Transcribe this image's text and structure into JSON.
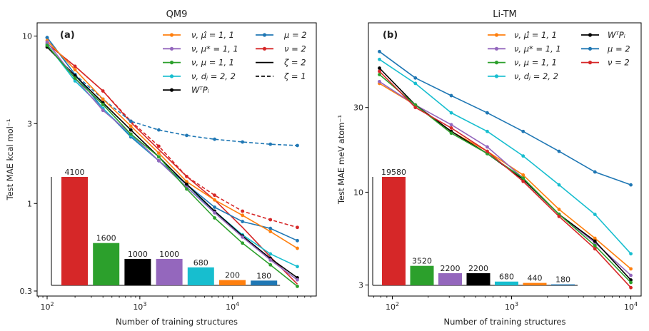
{
  "chart_data": [
    {
      "type": "line",
      "title": "QM9",
      "panel_label": "(a)",
      "xlabel": "Number of training structures",
      "ylabel": "Test MAE kcal mol⁻¹",
      "xscale": "log",
      "yscale": "log",
      "xlim": [
        78,
        80000
      ],
      "ylim": [
        0.28,
        12
      ],
      "xticks": [
        {
          "value": 100,
          "base": "10",
          "exp": "2"
        },
        {
          "value": 1000,
          "base": "10",
          "exp": "3"
        },
        {
          "value": 10000,
          "base": "10",
          "exp": "4"
        }
      ],
      "yticks": [
        {
          "value": 0.3,
          "label": "0.3"
        },
        {
          "value": 1,
          "label": "1"
        },
        {
          "value": 3,
          "label": "3"
        },
        {
          "value": 10,
          "label": "10"
        }
      ],
      "legend_columns": [
        [
          {
            "label": "ν, µ̂ = 1, 1",
            "color": "#ff7f0e",
            "dash": "solid",
            "marker": true
          },
          {
            "label": "ν, µ* = 1, 1",
            "color": "#9467bd",
            "dash": "solid",
            "marker": true
          },
          {
            "label": "ν, µ = 1, 1",
            "color": "#2ca02c",
            "dash": "solid",
            "marker": true
          },
          {
            "label": "ν, dⱼ = 2, 2",
            "color": "#17becf",
            "dash": "solid",
            "marker": true
          },
          {
            "label": "WᵀPᵢ",
            "color": "#000000",
            "dash": "solid",
            "marker": true
          }
        ],
        [
          {
            "label": "µ = 2",
            "color": "#1f77b4",
            "dash": "solid",
            "marker": true
          },
          {
            "label": "ν = 2",
            "color": "#d62728",
            "dash": "solid",
            "marker": true
          },
          {
            "label": "ζ = 2",
            "color": "#000000",
            "dash": "solid",
            "marker": false
          },
          {
            "label": "ζ = 1",
            "color": "#000000",
            "dash": "dashed",
            "marker": false
          }
        ]
      ],
      "x": [
        100,
        200,
        400,
        800,
        1600,
        3200,
        6400,
        12800,
        25600,
        50000
      ],
      "series": [
        {
          "name": "ν=2 ζ=2",
          "color": "#d62728",
          "dash": "solid",
          "marker": false,
          "values": [
            9.0,
            6.6,
            4.7,
            3.05,
            2.1,
            1.45,
            1.05,
            0.72,
            0.48,
            0.33
          ]
        },
        {
          "name": "ν=2 ζ=1",
          "color": "#d62728",
          "dash": "dashed",
          "marker": true,
          "values": [
            9.0,
            6.6,
            4.7,
            3.1,
            2.2,
            1.45,
            1.12,
            0.9,
            0.8,
            0.72
          ]
        },
        {
          "name": "µ=2 ζ=1",
          "color": "#1f77b4",
          "dash": "dashed",
          "marker": true,
          "values": [
            9.8,
            5.9,
            4.2,
            3.1,
            2.75,
            2.55,
            2.42,
            2.33,
            2.26,
            2.22
          ]
        },
        {
          "name": "µ=2 ζ=2",
          "color": "#1f77b4",
          "dash": "solid",
          "marker": true,
          "values": [
            9.8,
            5.9,
            3.7,
            2.5,
            1.8,
            1.3,
            0.95,
            0.78,
            0.71,
            0.6
          ]
        },
        {
          "name": "ν,µ̂=1,1",
          "color": "#ff7f0e",
          "dash": "solid",
          "marker": true,
          "values": [
            9.4,
            6.3,
            4.2,
            2.9,
            2.0,
            1.35,
            1.05,
            0.85,
            0.68,
            0.54
          ]
        },
        {
          "name": "ν,dⱼ=2,2",
          "color": "#17becf",
          "dash": "solid",
          "marker": true,
          "values": [
            8.9,
            5.4,
            3.7,
            2.55,
            1.8,
            1.25,
            0.9,
            0.65,
            0.5,
            0.42
          ]
        },
        {
          "name": "WᵀPᵢ",
          "color": "#000000",
          "dash": "solid",
          "marker": true,
          "values": [
            8.6,
            5.8,
            4.0,
            2.75,
            1.9,
            1.3,
            0.9,
            0.64,
            0.47,
            0.36
          ]
        },
        {
          "name": "ν,µ*=1,1",
          "color": "#9467bd",
          "dash": "solid",
          "marker": true,
          "values": [
            9.2,
            5.6,
            3.6,
            2.6,
            1.8,
            1.25,
            0.88,
            0.63,
            0.46,
            0.35
          ]
        },
        {
          "name": "ν,µ=1,1",
          "color": "#2ca02c",
          "dash": "solid",
          "marker": true,
          "values": [
            8.8,
            5.6,
            3.9,
            2.6,
            1.9,
            1.22,
            0.82,
            0.58,
            0.43,
            0.32
          ]
        }
      ],
      "inset_bars": {
        "max_value": 4100,
        "bars": [
          {
            "value": 4100,
            "label": "4100",
            "color": "#d62728"
          },
          {
            "value": 1600,
            "label": "1600",
            "color": "#2ca02c"
          },
          {
            "value": 1000,
            "label": "1000",
            "color": "#000000"
          },
          {
            "value": 1000,
            "label": "1000",
            "color": "#9467bd"
          },
          {
            "value": 680,
            "label": "680",
            "color": "#17becf"
          },
          {
            "value": 200,
            "label": "200",
            "color": "#ff7f0e"
          },
          {
            "value": 180,
            "label": "180",
            "color": "#1f77b4"
          }
        ]
      }
    },
    {
      "type": "line",
      "title": "Li-TM",
      "panel_label": "(b)",
      "xlabel": "Number of training structures",
      "ylabel": "Test MAE meV atom⁻¹",
      "xscale": "log",
      "yscale": "log",
      "xlim": [
        63,
        12200
      ],
      "ylim": [
        2.6,
        90
      ],
      "xticks": [
        {
          "value": 100,
          "base": "10",
          "exp": "2"
        },
        {
          "value": 1000,
          "base": "10",
          "exp": "3"
        },
        {
          "value": 10000,
          "base": "10",
          "exp": "4"
        }
      ],
      "yticks": [
        {
          "value": 3,
          "label": "3"
        },
        {
          "value": 10,
          "label": "10"
        },
        {
          "value": 30,
          "label": "30"
        }
      ],
      "legend_columns": [
        [
          {
            "label": "ν, µ̂ = 1, 1",
            "color": "#ff7f0e",
            "dash": "solid",
            "marker": true
          },
          {
            "label": "ν, µ* = 1, 1",
            "color": "#9467bd",
            "dash": "solid",
            "marker": true
          },
          {
            "label": "ν, µ = 1, 1",
            "color": "#2ca02c",
            "dash": "solid",
            "marker": true
          },
          {
            "label": "ν, dⱼ = 2, 2",
            "color": "#17becf",
            "dash": "solid",
            "marker": true
          }
        ],
        [
          {
            "label": "WᵀPᵢ",
            "color": "#000000",
            "dash": "solid",
            "marker": true
          },
          {
            "label": "µ = 2",
            "color": "#1f77b4",
            "dash": "solid",
            "marker": true
          },
          {
            "label": "ν = 2",
            "color": "#d62728",
            "dash": "solid",
            "marker": true
          }
        ]
      ],
      "x": [
        78,
        156,
        312,
        625,
        1250,
        2500,
        5000,
        10000
      ],
      "series": [
        {
          "name": "µ=2",
          "color": "#1f77b4",
          "dash": "solid",
          "marker": true,
          "values": [
            62,
            44,
            35,
            28,
            22,
            17,
            13,
            11
          ]
        },
        {
          "name": "ν,dⱼ=2,2",
          "color": "#17becf",
          "dash": "solid",
          "marker": true,
          "values": [
            56,
            41,
            28,
            22,
            16,
            11,
            7.5,
            4.5
          ]
        },
        {
          "name": "ν,µ̂=1,1",
          "color": "#ff7f0e",
          "dash": "solid",
          "marker": true,
          "values": [
            41,
            31,
            22,
            17,
            12.5,
            8.0,
            5.5,
            3.7
          ]
        },
        {
          "name": "ν,µ*=1,1",
          "color": "#9467bd",
          "dash": "solid",
          "marker": true,
          "values": [
            42,
            31,
            24,
            18,
            12.0,
            7.5,
            5.2,
            3.4
          ]
        },
        {
          "name": "WᵀPᵢ",
          "color": "#000000",
          "dash": "solid",
          "marker": true,
          "values": [
            50,
            31,
            22,
            16.5,
            11.8,
            7.5,
            5.3,
            3.2
          ]
        },
        {
          "name": "ν,µ=1,1",
          "color": "#2ca02c",
          "dash": "solid",
          "marker": true,
          "values": [
            46,
            31,
            21.5,
            16.5,
            12.0,
            7.5,
            5.0,
            3.1
          ]
        },
        {
          "name": "ν=2",
          "color": "#d62728",
          "dash": "solid",
          "marker": true,
          "values": [
            48,
            30,
            23,
            17,
            11.5,
            7.3,
            4.8,
            2.9
          ]
        }
      ],
      "inset_bars": {
        "max_value": 19580,
        "bars": [
          {
            "value": 19580,
            "label": "19580",
            "color": "#d62728"
          },
          {
            "value": 3520,
            "label": "3520",
            "color": "#2ca02c"
          },
          {
            "value": 2200,
            "label": "2200",
            "color": "#9467bd"
          },
          {
            "value": 2200,
            "label": "2200",
            "color": "#000000"
          },
          {
            "value": 680,
            "label": "680",
            "color": "#17becf"
          },
          {
            "value": 440,
            "label": "440",
            "color": "#ff7f0e"
          },
          {
            "value": 180,
            "label": "180",
            "color": "#1f77b4"
          }
        ]
      }
    }
  ]
}
